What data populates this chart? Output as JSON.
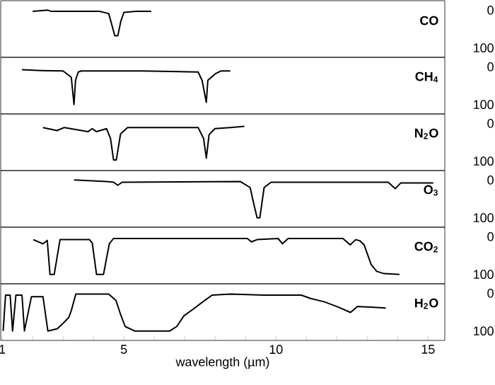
{
  "chart_data": [
    {
      "type": "line",
      "title": "CO",
      "color": "#000000",
      "xlim": [
        0.95,
        15.55
      ],
      "ylim": [
        125,
        -25
      ],
      "yticks": [
        0,
        100
      ],
      "tick_labels": "y",
      "x": [
        2.0,
        2.5,
        2.6,
        4.2,
        4.5,
        4.6,
        4.7,
        4.8,
        4.9,
        5.0,
        5.4,
        5.9
      ],
      "values": [
        3,
        0,
        3,
        3,
        9,
        38,
        68,
        68,
        29,
        6,
        3,
        3
      ]
    },
    {
      "type": "line",
      "title": "CH$_{4}$",
      "color": "#000000",
      "xlim": [
        0.95,
        15.55
      ],
      "ylim": [
        125,
        -25
      ],
      "yticks": [
        0,
        100
      ],
      "tick_labels": "y",
      "x": [
        1.65,
        2.3,
        3.0,
        3.27,
        3.36,
        3.41,
        3.5,
        3.6,
        5.6,
        7.44,
        7.57,
        7.71,
        7.76,
        8.0,
        8.2,
        8.5
      ],
      "values": [
        8,
        10,
        11,
        28,
        100,
        36,
        14,
        11,
        11,
        14,
        36,
        94,
        36,
        19,
        11,
        11
      ]
    },
    {
      "type": "line",
      "title": "N$_{2}$O",
      "color": "#000000",
      "xlim": [
        0.95,
        15.55
      ],
      "ylim": [
        125,
        -25
      ],
      "yticks": [
        0,
        100
      ],
      "tick_labels": "y",
      "x": [
        2.34,
        2.8,
        3.04,
        3.82,
        3.96,
        4.1,
        4.43,
        4.56,
        4.66,
        4.75,
        4.89,
        5.12,
        7.44,
        7.62,
        7.71,
        7.8,
        7.99,
        8.5,
        8.96
      ],
      "values": [
        11,
        19,
        11,
        22,
        14,
        22,
        14,
        40,
        97,
        97,
        28,
        11,
        11,
        40,
        92,
        30,
        14,
        11,
        8
      ]
    },
    {
      "type": "line",
      "title": "O$_{3}$",
      "color": "#000000",
      "xlim": [
        0.95,
        15.55
      ],
      "ylim": [
        125,
        -25
      ],
      "yticks": [
        0,
        100
      ],
      "tick_labels": "y",
      "x": [
        3.36,
        4.43,
        4.66,
        4.8,
        4.94,
        8.82,
        9.15,
        9.29,
        9.38,
        9.47,
        9.61,
        9.84,
        13.69,
        13.92,
        14.1,
        15.17
      ],
      "values": [
        0,
        4,
        6,
        14,
        6,
        4,
        20,
        70,
        100,
        100,
        20,
        6,
        6,
        23,
        8,
        8
      ]
    },
    {
      "type": "line",
      "title": "CO$_{2}$",
      "color": "#000000",
      "xlim": [
        0.95,
        15.55
      ],
      "ylim": [
        125,
        -25
      ],
      "yticks": [
        0,
        100
      ],
      "tick_labels": "y",
      "x": [
        2.02,
        2.34,
        2.48,
        2.57,
        2.71,
        2.9,
        3.87,
        3.96,
        4.1,
        4.33,
        4.52,
        4.66,
        9.06,
        9.19,
        9.38,
        10.07,
        10.21,
        10.4,
        12.2,
        12.44,
        12.62,
        12.76,
        12.9,
        13.13,
        13.31,
        13.55,
        14.06
      ],
      "values": [
        8,
        19,
        10,
        100,
        100,
        8,
        8,
        17,
        100,
        100,
        19,
        5,
        5,
        14,
        8,
        5,
        19,
        5,
        5,
        22,
        8,
        11,
        22,
        74,
        92,
        98,
        100
      ]
    },
    {
      "type": "line",
      "title": "H$_{2}$O",
      "xlabel": "wavelength (µm)",
      "color": "#000000",
      "xlim": [
        0.95,
        15.55
      ],
      "ylim": [
        125,
        -25
      ],
      "yticks": [
        0,
        100
      ],
      "xticks": [
        1,
        {
          "value": 2,
          "label": null
        },
        {
          "value": 3,
          "label": null
        },
        {
          "value": 4,
          "label": null
        },
        5,
        {
          "value": 6,
          "label": null
        },
        {
          "value": 7,
          "label": null
        },
        {
          "value": 8,
          "label": null
        },
        {
          "value": 9,
          "label": null
        },
        10,
        {
          "value": 11,
          "label": null
        },
        {
          "value": 12,
          "label": null
        },
        {
          "value": 13,
          "label": null
        },
        {
          "value": 14,
          "label": null
        },
        15
      ],
      "x": [
        1.03,
        1.11,
        1.26,
        1.34,
        1.45,
        1.65,
        1.73,
        1.96,
        2.34,
        2.5,
        2.81,
        2.96,
        3.19,
        3.27,
        3.42,
        4.5,
        4.74,
        4.89,
        5.04,
        5.35,
        6.51,
        6.74,
        6.97,
        7.28,
        7.59,
        7.9,
        8.51,
        9.6,
        10.83,
        11.14,
        11.6,
        12.06,
        12.45,
        12.68,
        13.14,
        13.61
      ],
      "values": [
        100,
        5,
        5,
        100,
        5,
        5,
        100,
        9,
        9,
        100,
        94,
        83,
        64,
        46,
        2,
        2,
        19,
        56,
        88,
        100,
        100,
        88,
        60,
        42,
        23,
        5,
        2,
        5,
        5,
        14,
        23,
        37,
        51,
        35,
        37,
        39
      ]
    }
  ]
}
